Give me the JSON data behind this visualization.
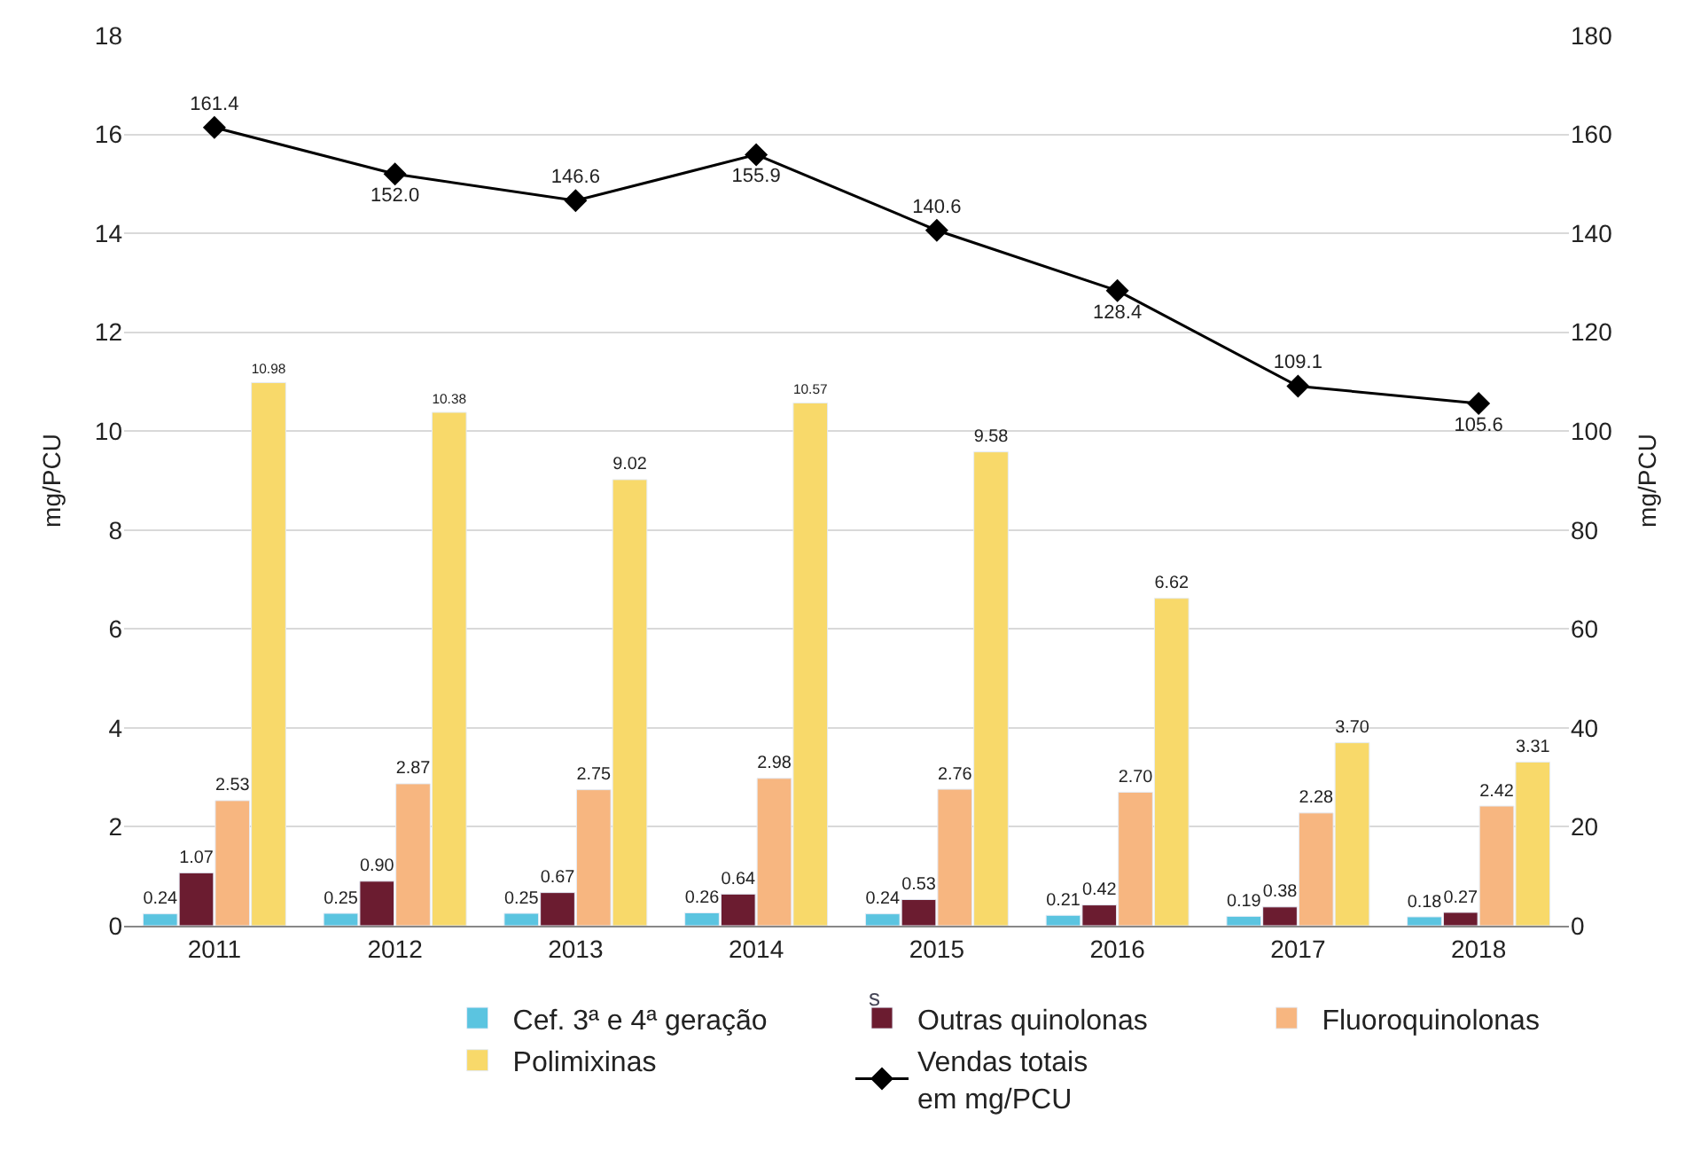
{
  "chart_data": {
    "type": "bar",
    "categories": [
      "2011",
      "2012",
      "2013",
      "2014",
      "2015",
      "2016",
      "2017",
      "2018"
    ],
    "ylabel": "mg/PCU",
    "y2label": "mg/PCU",
    "ylim": [
      0,
      18
    ],
    "yticks": [
      0,
      2,
      4,
      6,
      8,
      10,
      12,
      14,
      16,
      18
    ],
    "y2lim": [
      0,
      180
    ],
    "y2ticks": [
      0,
      20,
      40,
      60,
      80,
      100,
      120,
      140,
      160,
      180
    ],
    "grid": "y",
    "legend": "bottom",
    "annotations": [
      "s"
    ],
    "series": [
      {
        "name": "Cef. 3ª e 4ª geração",
        "color": "#5bc4e0",
        "values": [
          0.24,
          0.25,
          0.25,
          0.26,
          0.24,
          0.21,
          0.19,
          0.18
        ],
        "value_labels": [
          "0.24",
          "0.25",
          "0.25",
          "0.26",
          "0.24",
          "0.21",
          "0.19",
          "0.18"
        ]
      },
      {
        "name": "Outras quinolonas",
        "color": "#6b1c30",
        "values": [
          1.07,
          0.9,
          0.67,
          0.64,
          0.53,
          0.42,
          0.38,
          0.27
        ],
        "value_labels": [
          "1.07",
          "0.90",
          "0.67",
          "0.64",
          "0.53",
          "0.42",
          "0.38",
          "0.27"
        ]
      },
      {
        "name": "Fluoroquinolonas",
        "color": "#f7b680",
        "values": [
          2.53,
          2.87,
          2.75,
          2.98,
          2.76,
          2.7,
          2.28,
          2.42
        ],
        "value_labels": [
          "2.53",
          "2.87",
          "2.75",
          "2.98",
          "2.76",
          "2.70",
          "2.28",
          "2.42"
        ]
      },
      {
        "name": "Polimixinas",
        "color": "#f8d96a",
        "values": [
          10.98,
          10.38,
          9.02,
          10.57,
          9.58,
          6.62,
          3.7,
          3.31
        ],
        "value_labels": [
          "10.98",
          "10.38",
          "9.02",
          "10.57",
          "9.58",
          "6.62",
          "3.70",
          "3.31"
        ]
      },
      {
        "name": "Vendas totais\nem mg/PCU",
        "type": "line",
        "axis": "y2",
        "marker": "diamond",
        "color": "#000000",
        "values": [
          161.4,
          152.0,
          146.6,
          155.9,
          140.6,
          128.4,
          109.1,
          105.6
        ],
        "value_labels": [
          "161.4",
          "152.0",
          "146.6",
          "155.9",
          "140.6",
          "128.4",
          "109.1",
          "105.6"
        ]
      }
    ]
  }
}
